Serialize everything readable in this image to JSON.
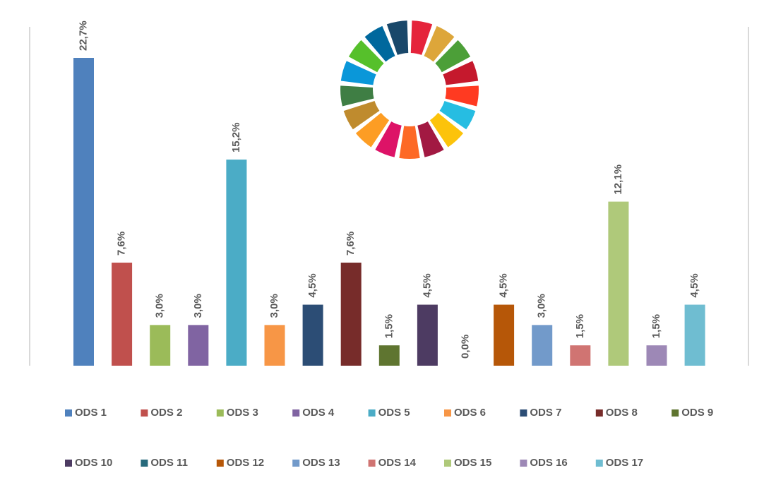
{
  "chart_data": {
    "type": "bar",
    "categories": [
      "ODS 1",
      "ODS 2",
      "ODS 3",
      "ODS 4",
      "ODS 5",
      "ODS 6",
      "ODS 7",
      "ODS 8",
      "ODS 9",
      "ODS 10",
      "ODS 11",
      "ODS 12",
      "ODS 13",
      "ODS 14",
      "ODS 15",
      "ODS 16",
      "ODS 17"
    ],
    "values": [
      22.7,
      7.6,
      3.0,
      3.0,
      15.2,
      3.0,
      4.5,
      7.6,
      1.5,
      4.5,
      0.0,
      4.5,
      3.0,
      1.5,
      12.1,
      1.5,
      4.5
    ],
    "value_labels": [
      "22,7%",
      "7,6%",
      "3,0%",
      "3,0%",
      "15,2%",
      "3,0%",
      "4,5%",
      "7,6%",
      "1,5%",
      "4,5%",
      "0,0%",
      "4,5%",
      "3,0%",
      "1,5%",
      "12,1%",
      "1,5%",
      "4,5%"
    ],
    "colors": [
      "#4f81bd",
      "#c0504d",
      "#9bbb59",
      "#8064a2",
      "#4bacc6",
      "#f79646",
      "#2c4d75",
      "#772c2a",
      "#5f7530",
      "#4d3b62",
      "#276a7c",
      "#b65708",
      "#729aca",
      "#d07472",
      "#afc97a",
      "#9d88b6",
      "#6fbdd1"
    ],
    "legend": "bottom"
  }
}
